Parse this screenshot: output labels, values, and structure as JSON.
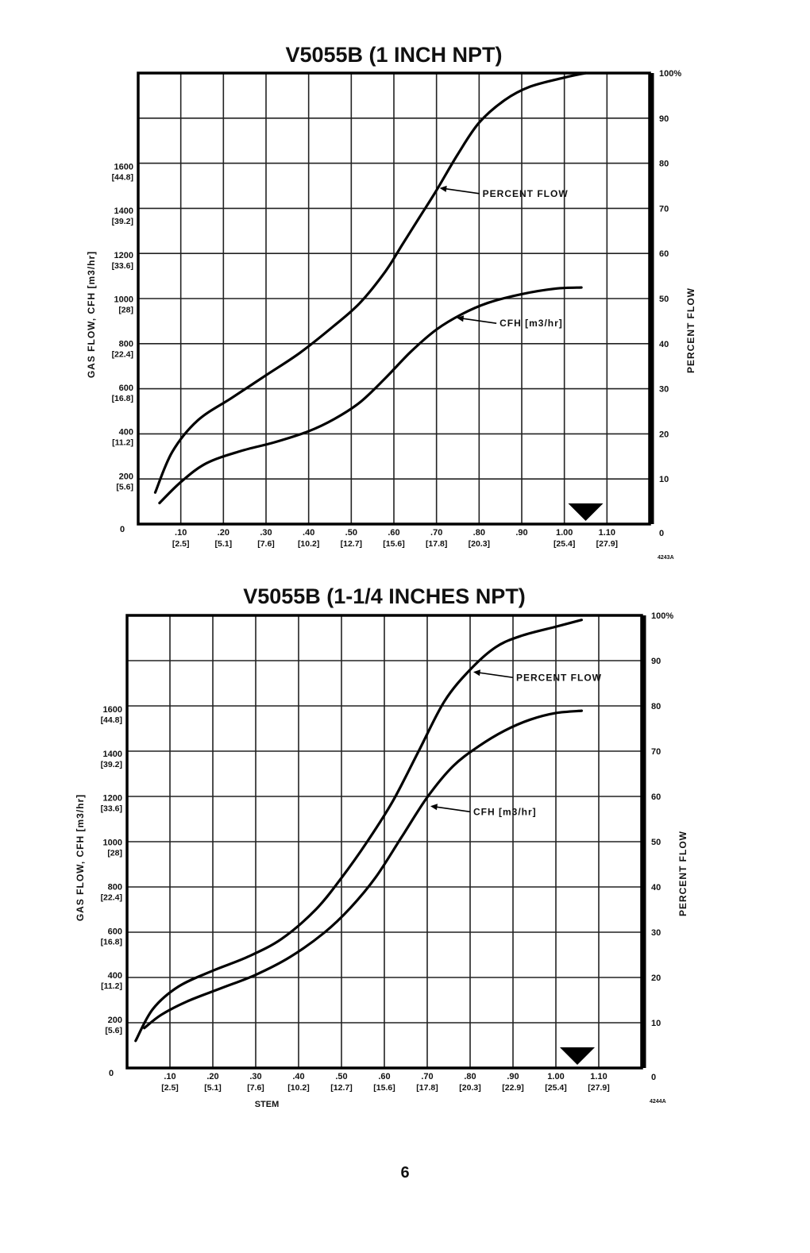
{
  "page_number": "6",
  "chart_data": [
    {
      "type": "line",
      "title": "V5055B (1 INCH NPT)",
      "xlabel": "",
      "ylabel_left": "GAS FLOW, CFH [m3/hr]",
      "ylabel_right": "PERCENT FLOW",
      "figure_code": "4243A",
      "xlim": [
        0,
        1.2
      ],
      "ylim_left": [
        0,
        2040
      ],
      "ylim_right": [
        0,
        100
      ],
      "grid": true,
      "x_ticks": [
        {
          "x": 0,
          "label": "0",
          "metric": ""
        },
        {
          "x": 0.1,
          "label": ".10",
          "metric": "[2.5]"
        },
        {
          "x": 0.2,
          "label": ".20",
          "metric": "[5.1]"
        },
        {
          "x": 0.3,
          "label": ".30",
          "metric": "[7.6]"
        },
        {
          "x": 0.4,
          "label": ".40",
          "metric": "[10.2]"
        },
        {
          "x": 0.5,
          "label": ".50",
          "metric": "[12.7]"
        },
        {
          "x": 0.6,
          "label": ".60",
          "metric": "[15.6]"
        },
        {
          "x": 0.7,
          "label": ".70",
          "metric": "[17.8]"
        },
        {
          "x": 0.8,
          "label": ".80",
          "metric": "[20.3]"
        },
        {
          "x": 0.9,
          "label": ".90",
          "metric": ""
        },
        {
          "x": 1.0,
          "label": "1.00",
          "metric": "[25.4]"
        },
        {
          "x": 1.1,
          "label": "1.10",
          "metric": "[27.9]"
        }
      ],
      "y_left_ticks": [
        {
          "v": 0,
          "label": "0",
          "metric": ""
        },
        {
          "v": 200,
          "label": "200",
          "metric": "[5.6]"
        },
        {
          "v": 400,
          "label": "400",
          "metric": "[11.2]"
        },
        {
          "v": 600,
          "label": "600",
          "metric": "[16.8]"
        },
        {
          "v": 800,
          "label": "800",
          "metric": "[22.4]"
        },
        {
          "v": 1000,
          "label": "1000",
          "metric": "[28]"
        },
        {
          "v": 1200,
          "label": "1200",
          "metric": "[33.6]"
        },
        {
          "v": 1400,
          "label": "1400",
          "metric": "[39.2]"
        },
        {
          "v": 1600,
          "label": "1600",
          "metric": "[44.8]"
        }
      ],
      "y_right_ticks": [
        {
          "v": 0,
          "label": "0"
        },
        {
          "v": 10,
          "label": "10"
        },
        {
          "v": 20,
          "label": "20"
        },
        {
          "v": 30,
          "label": "30"
        },
        {
          "v": 40,
          "label": "40"
        },
        {
          "v": 50,
          "label": "50"
        },
        {
          "v": 60,
          "label": "60"
        },
        {
          "v": 70,
          "label": "70"
        },
        {
          "v": 80,
          "label": "80"
        },
        {
          "v": 90,
          "label": "90"
        },
        {
          "v": 100,
          "label": "100%"
        }
      ],
      "marker_x": 1.05,
      "series": [
        {
          "name": "PERCENT FLOW",
          "axis": "right",
          "x": [
            0.04,
            0.08,
            0.14,
            0.22,
            0.3,
            0.38,
            0.46,
            0.52,
            0.58,
            0.62,
            0.66,
            0.7,
            0.75,
            0.8,
            0.86,
            0.92,
            1.0,
            1.05
          ],
          "y": [
            7,
            16,
            23,
            28,
            33,
            38,
            44,
            49,
            56,
            62,
            68,
            74,
            82,
            89,
            94,
            97,
            99,
            100
          ]
        },
        {
          "name": "CFH [m3/hr]",
          "axis": "left",
          "x": [
            0.05,
            0.1,
            0.16,
            0.24,
            0.32,
            0.4,
            0.46,
            0.52,
            0.58,
            0.64,
            0.7,
            0.76,
            0.82,
            0.9,
            0.98,
            1.04
          ],
          "y": [
            95,
            190,
            275,
            330,
            370,
            420,
            475,
            550,
            660,
            780,
            880,
            950,
            1000,
            1040,
            1065,
            1070
          ]
        }
      ],
      "annotations": [
        {
          "series": "PERCENT FLOW",
          "text": "PERCENT FLOW",
          "x": 0.7,
          "y": 74.5
        },
        {
          "series": "CFH [m3/hr]",
          "text": "CFH [m3/hr]",
          "x": 0.74,
          "y": 933
        }
      ]
    },
    {
      "type": "line",
      "title": "V5055B (1-1/4 INCHES NPT)",
      "xlabel": "STEM",
      "ylabel_left": "GAS FLOW, CFH [m3/hr]",
      "ylabel_right": "PERCENT FLOW",
      "figure_code": "4244A",
      "xlim": [
        0,
        1.2
      ],
      "ylim_left": [
        0,
        2040
      ],
      "ylim_right": [
        0,
        100
      ],
      "grid": true,
      "x_ticks": [
        {
          "x": 0,
          "label": "0",
          "metric": ""
        },
        {
          "x": 0.1,
          "label": ".10",
          "metric": "[2.5]"
        },
        {
          "x": 0.2,
          "label": ".20",
          "metric": "[5.1]"
        },
        {
          "x": 0.3,
          "label": ".30",
          "metric": "[7.6]"
        },
        {
          "x": 0.4,
          "label": ".40",
          "metric": "[10.2]"
        },
        {
          "x": 0.5,
          "label": ".50",
          "metric": "[12.7]"
        },
        {
          "x": 0.6,
          "label": ".60",
          "metric": "[15.6]"
        },
        {
          "x": 0.7,
          "label": ".70",
          "metric": "[17.8]"
        },
        {
          "x": 0.8,
          "label": ".80",
          "metric": "[20.3]"
        },
        {
          "x": 0.9,
          "label": ".90",
          "metric": "[22.9]"
        },
        {
          "x": 1.0,
          "label": "1.00",
          "metric": "[25.4]"
        },
        {
          "x": 1.1,
          "label": "1.10",
          "metric": "[27.9]"
        }
      ],
      "y_left_ticks": [
        {
          "v": 0,
          "label": "0",
          "metric": ""
        },
        {
          "v": 200,
          "label": "200",
          "metric": "[5.6]"
        },
        {
          "v": 400,
          "label": "400",
          "metric": "[11.2]"
        },
        {
          "v": 600,
          "label": "600",
          "metric": "[16.8]"
        },
        {
          "v": 800,
          "label": "800",
          "metric": "[22.4]"
        },
        {
          "v": 1000,
          "label": "1000",
          "metric": "[28]"
        },
        {
          "v": 1200,
          "label": "1200",
          "metric": "[33.6]"
        },
        {
          "v": 1400,
          "label": "1400",
          "metric": "[39.2]"
        },
        {
          "v": 1600,
          "label": "1600",
          "metric": "[44.8]"
        }
      ],
      "y_right_ticks": [
        {
          "v": 0,
          "label": "0"
        },
        {
          "v": 10,
          "label": "10"
        },
        {
          "v": 20,
          "label": "20"
        },
        {
          "v": 30,
          "label": "30"
        },
        {
          "v": 40,
          "label": "40"
        },
        {
          "v": 50,
          "label": "50"
        },
        {
          "v": 60,
          "label": "60"
        },
        {
          "v": 70,
          "label": "70"
        },
        {
          "v": 80,
          "label": "80"
        },
        {
          "v": 90,
          "label": "90"
        },
        {
          "v": 100,
          "label": "100%"
        }
      ],
      "marker_x": 1.05,
      "series": [
        {
          "name": "PERCENT FLOW",
          "axis": "right",
          "x": [
            0.02,
            0.06,
            0.12,
            0.2,
            0.28,
            0.36,
            0.44,
            0.5,
            0.56,
            0.62,
            0.68,
            0.74,
            0.8,
            0.86,
            0.92,
            1.0,
            1.06
          ],
          "y": [
            6,
            13,
            18,
            21.5,
            24.5,
            28.5,
            35,
            42,
            50,
            59,
            70,
            81,
            88,
            93,
            95.5,
            97.5,
            99
          ]
        },
        {
          "name": "CFH [m3/hr]",
          "axis": "left",
          "x": [
            0.04,
            0.08,
            0.14,
            0.22,
            0.3,
            0.38,
            0.46,
            0.52,
            0.58,
            0.64,
            0.7,
            0.76,
            0.82,
            0.88,
            0.94,
            1.0,
            1.06
          ],
          "y": [
            180,
            240,
            300,
            360,
            420,
            500,
            610,
            720,
            860,
            1040,
            1220,
            1360,
            1450,
            1520,
            1570,
            1600,
            1610
          ]
        }
      ],
      "annotations": [
        {
          "series": "PERCENT FLOW",
          "text": "PERCENT FLOW",
          "x": 0.8,
          "y": 87.5
        },
        {
          "series": "CFH [m3/hr]",
          "text": "CFH [m3/hr]",
          "x": 0.7,
          "y": 1180
        }
      ]
    }
  ]
}
